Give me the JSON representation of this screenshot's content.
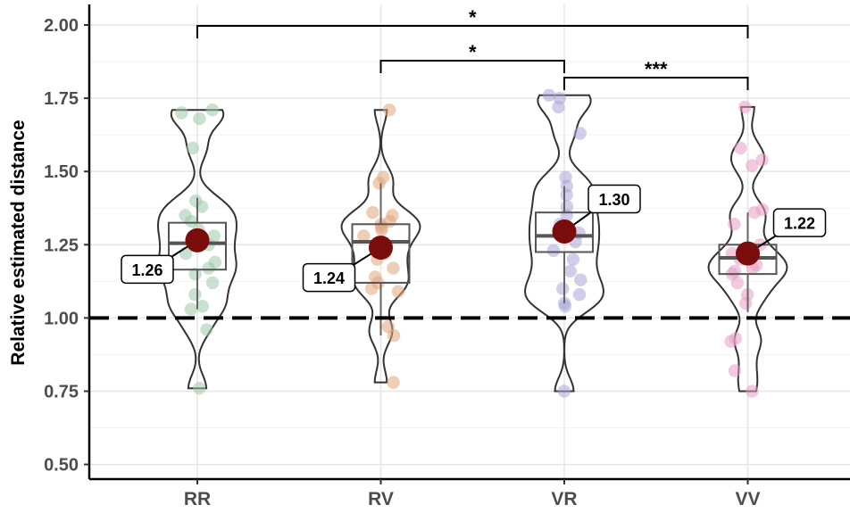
{
  "chart_data": {
    "type": "violin",
    "ylabel": "Relative estimated distance",
    "xlabel": "",
    "ylim": [
      0.45,
      2.07
    ],
    "yticks": [
      0.5,
      0.75,
      1.0,
      1.25,
      1.5,
      1.75,
      2.0
    ],
    "ytick_labels": [
      "0.50",
      "0.75",
      "1.00",
      "1.25",
      "1.50",
      "1.75",
      "2.00"
    ],
    "reference_line": 1.0,
    "categories": [
      "RR",
      "RV",
      "VR",
      "VV"
    ],
    "colors": {
      "RR": "#9cc9a8",
      "RV": "#e0a57a",
      "VR": "#aaa6d6",
      "VV": "#e79cc2",
      "mean": "#7b0c0c"
    },
    "groups": [
      {
        "name": "RR",
        "mean": 1.265,
        "mean_label": "1.26",
        "box": {
          "q1": 1.165,
          "median": 1.255,
          "q3": 1.325,
          "whisker_low": 1.03,
          "whisker_high": 1.41
        },
        "points": [
          1.71,
          1.7,
          1.68,
          1.58,
          1.4,
          1.38,
          1.35,
          1.33,
          1.3,
          1.28,
          1.25,
          1.22,
          1.19,
          1.17,
          1.15,
          1.12,
          1.08,
          1.04,
          1.03,
          0.96,
          0.76
        ]
      },
      {
        "name": "RV",
        "mean": 1.24,
        "mean_label": "1.24",
        "box": {
          "q1": 1.12,
          "median": 1.26,
          "q3": 1.32,
          "whisker_low": 0.94,
          "whisker_high": 1.46
        },
        "points": [
          1.71,
          1.48,
          1.46,
          1.36,
          1.35,
          1.33,
          1.32,
          1.31,
          1.3,
          1.28,
          1.25,
          1.22,
          1.2,
          1.17,
          1.14,
          1.12,
          1.1,
          1.09,
          0.97,
          0.94,
          0.78
        ]
      },
      {
        "name": "VR",
        "mean": 1.295,
        "mean_label": "1.30",
        "box": {
          "q1": 1.225,
          "median": 1.28,
          "q3": 1.36,
          "whisker_low": 1.05,
          "whisker_high": 1.45
        },
        "points": [
          1.76,
          1.75,
          1.72,
          1.63,
          1.48,
          1.45,
          1.42,
          1.38,
          1.35,
          1.32,
          1.29,
          1.26,
          1.23,
          1.2,
          1.16,
          1.13,
          1.1,
          1.08,
          1.05,
          1.04,
          0.75
        ]
      },
      {
        "name": "VV",
        "mean": 1.22,
        "mean_label": "1.22",
        "box": {
          "q1": 1.15,
          "median": 1.205,
          "q3": 1.25,
          "whisker_low": 1.02,
          "whisker_high": 1.36
        },
        "points": [
          1.72,
          1.58,
          1.54,
          1.52,
          1.37,
          1.36,
          1.32,
          1.25,
          1.22,
          1.2,
          1.18,
          1.17,
          1.16,
          1.15,
          1.12,
          1.08,
          1.05,
          0.93,
          0.92,
          0.82,
          0.75
        ]
      }
    ],
    "significance": [
      {
        "from": "RR",
        "to": "VV",
        "label": "*"
      },
      {
        "from": "RV",
        "to": "VR",
        "label": "*"
      },
      {
        "from": "VR",
        "to": "VV",
        "label": "***"
      }
    ]
  }
}
